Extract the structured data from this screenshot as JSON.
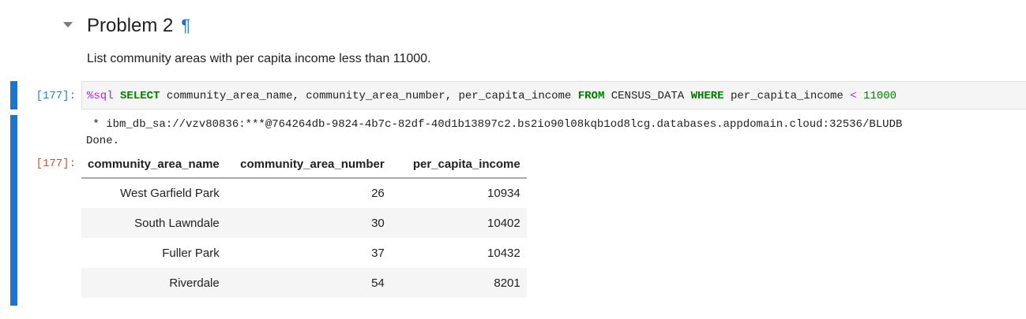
{
  "markdown_cell": {
    "heading": "Problem 2",
    "anchor_symbol": "¶",
    "text": "List community areas with per capita income less than 11000."
  },
  "code_cell": {
    "input_prompt": "[177]:",
    "code_tokens": {
      "magic": "%sql",
      "select_kw": "SELECT",
      "columns": "community_area_name, community_area_number, per_capita_income",
      "from_kw": "FROM",
      "table_name": "CENSUS_DATA",
      "where_kw": "WHERE",
      "where_col": "per_capita_income",
      "operator": "<",
      "number": "11000"
    }
  },
  "output": {
    "prompt": "[177]:",
    "connection_line": " * ibm_db_sa://vzv80836:***@764264db-9824-4b7c-82df-40d1b13897c2.bs2io90l08kqb1od8lcg.databases.appdomain.cloud:32536/BLUDB",
    "status_line": "Done.",
    "table": {
      "columns": [
        "community_area_name",
        "community_area_number",
        "per_capita_income"
      ],
      "rows": [
        [
          "West Garfield Park",
          "26",
          "10934"
        ],
        [
          "South Lawndale",
          "30",
          "10402"
        ],
        [
          "Fuller Park",
          "37",
          "10432"
        ],
        [
          "Riverdale",
          "54",
          "8201"
        ]
      ]
    }
  },
  "colors": {
    "cell_bar": "#1976d2",
    "input_prompt": "#307fc1",
    "output_prompt": "#bf5b3d",
    "anchor": "#1a73c7"
  }
}
